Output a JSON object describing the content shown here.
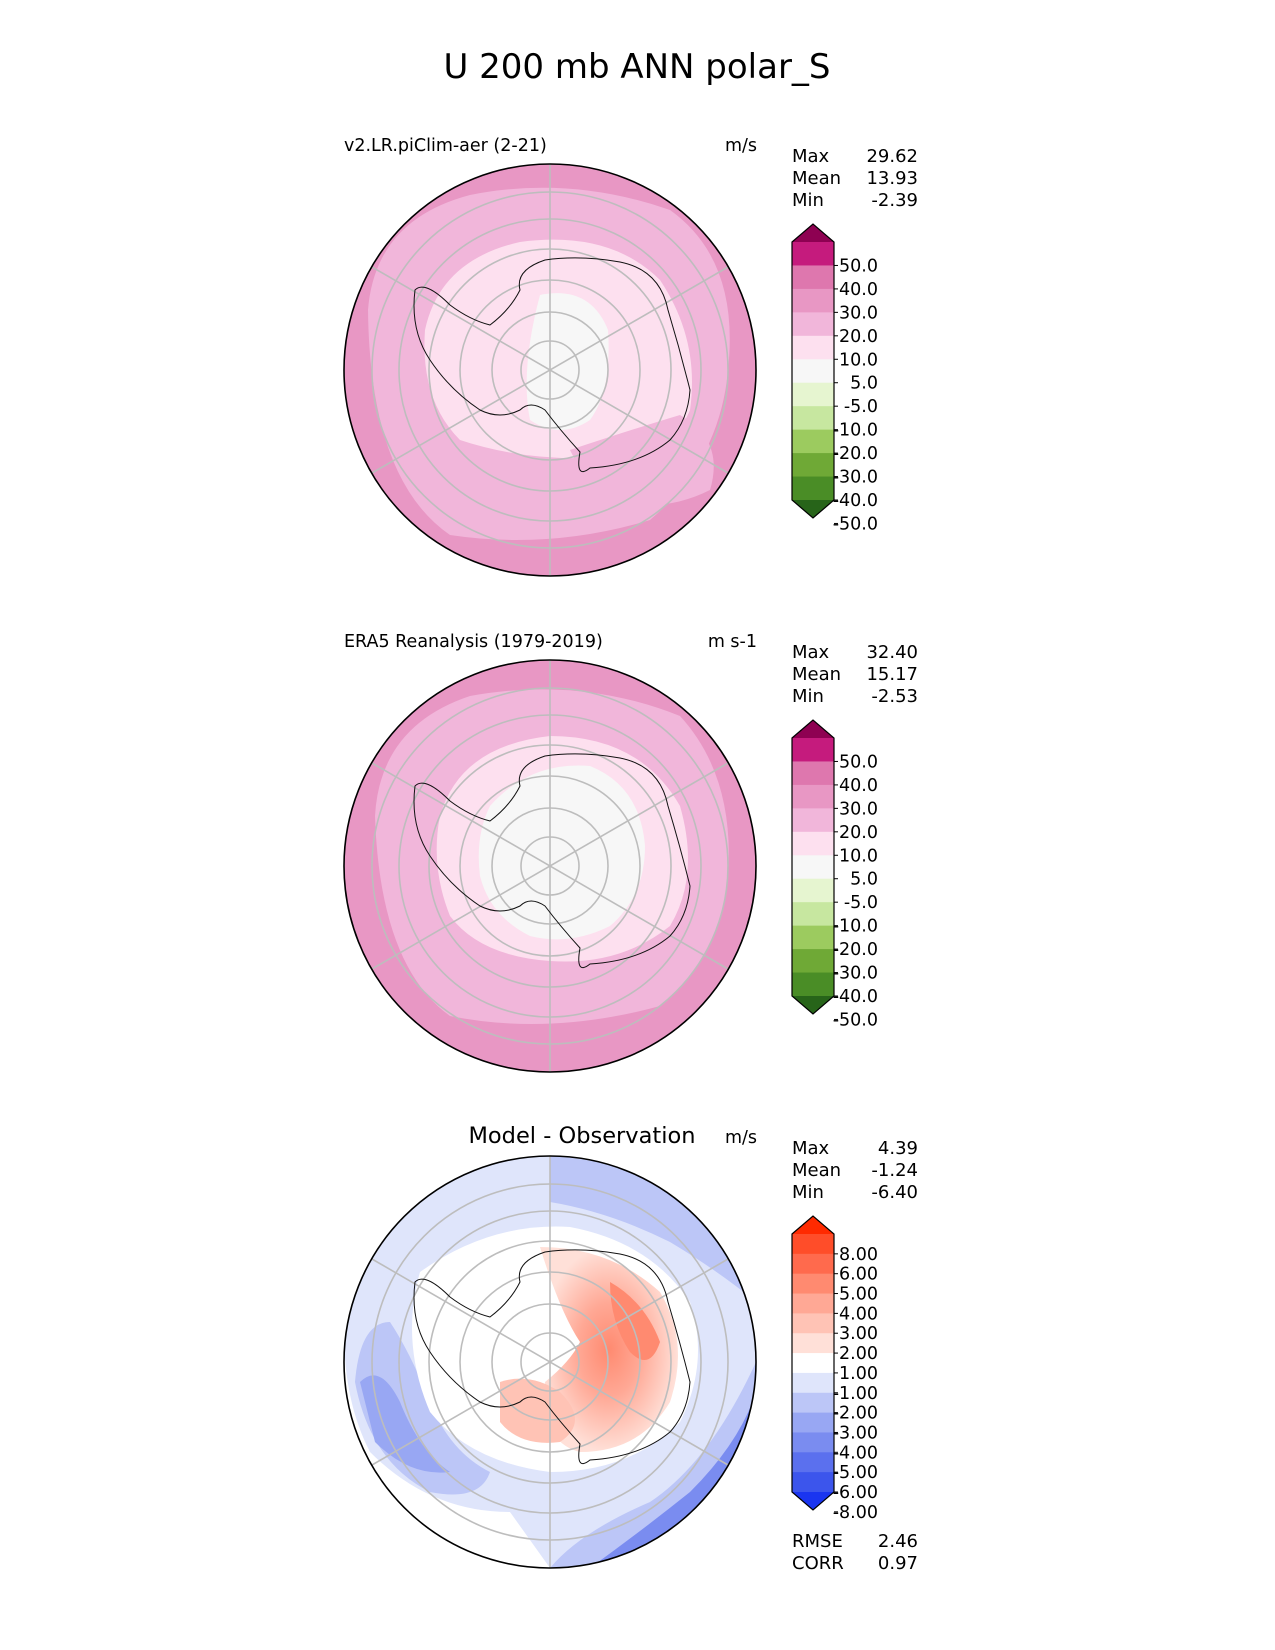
{
  "title": "U 200 mb ANN polar_S",
  "panels": [
    {
      "title": "v2.LR.piClim-aer (2-21)",
      "units": "m/s",
      "stats": [
        {
          "label": "Max",
          "value": "29.62"
        },
        {
          "label": "Mean",
          "value": "13.93"
        },
        {
          "label": "Min",
          "value": "-2.39"
        }
      ],
      "colorbar": {
        "ticks": [
          "50.0",
          "40.0",
          "30.0",
          "20.0",
          "10.0",
          "5.0",
          "-5.0",
          "-10.0",
          "-20.0",
          "-30.0",
          "-40.0",
          "-50.0"
        ],
        "colors": [
          "#8e0152",
          "#c51b7d",
          "#de77ae",
          "#e897c4",
          "#f1b6da",
          "#fde0ef",
          "#f7f7f7",
          "#e6f5d0",
          "#c7e7a0",
          "#9ccb5f",
          "#6fa936",
          "#4a8d26",
          "#276419"
        ]
      },
      "field": [
        {
          "color": "#e897c4",
          "fraction": 1.0
        },
        {
          "color": "#f1b6da",
          "fraction": 0.86
        },
        {
          "color": "#fde0ef",
          "fraction": 0.6
        },
        {
          "color": "#f7f7f7",
          "fraction": 0.28
        }
      ]
    },
    {
      "title": "ERA5 Reanalysis (1979-2019)",
      "units": "m s-1",
      "stats": [
        {
          "label": "Max",
          "value": "32.40"
        },
        {
          "label": "Mean",
          "value": "15.17"
        },
        {
          "label": "Min",
          "value": "-2.53"
        }
      ],
      "colorbar": {
        "ticks": [
          "50.0",
          "40.0",
          "30.0",
          "20.0",
          "10.0",
          "5.0",
          "-5.0",
          "-10.0",
          "-20.0",
          "-30.0",
          "-40.0",
          "-50.0"
        ],
        "colors": [
          "#8e0152",
          "#c51b7d",
          "#de77ae",
          "#e897c4",
          "#f1b6da",
          "#fde0ef",
          "#f7f7f7",
          "#e6f5d0",
          "#c7e7a0",
          "#9ccb5f",
          "#6fa936",
          "#4a8d26",
          "#276419"
        ]
      },
      "field": [
        {
          "color": "#e897c4",
          "fraction": 1.0
        },
        {
          "color": "#f1b6da",
          "fraction": 0.84
        },
        {
          "color": "#fde0ef",
          "fraction": 0.62
        },
        {
          "color": "#f7f7f7",
          "fraction": 0.42
        }
      ]
    },
    {
      "title": "Model - Observation",
      "units": "m/s",
      "stats": [
        {
          "label": "Max",
          "value": "4.39"
        },
        {
          "label": "Mean",
          "value": "-1.24"
        },
        {
          "label": "Min",
          "value": "-6.40"
        }
      ],
      "colorbar": {
        "ticks": [
          "8.00",
          "6.00",
          "5.00",
          "4.00",
          "3.00",
          "2.00",
          "1.00",
          "-1.00",
          "-2.00",
          "-3.00",
          "-4.00",
          "-5.00",
          "-6.00",
          "-8.00"
        ],
        "colors": [
          "#ff2a00",
          "#ff4d29",
          "#ff6a4d",
          "#ff8a70",
          "#ffa895",
          "#ffc3b5",
          "#ffe0d8",
          "#ffffff",
          "#dfe5fb",
          "#bcc6f7",
          "#98a7f3",
          "#7a8cf0",
          "#5b70ee",
          "#3c55ec",
          "#1a35f0"
        ]
      },
      "extra": [
        {
          "label": "RMSE",
          "value": "2.46"
        },
        {
          "label": "CORR",
          "value": "0.97"
        }
      ]
    }
  ]
}
